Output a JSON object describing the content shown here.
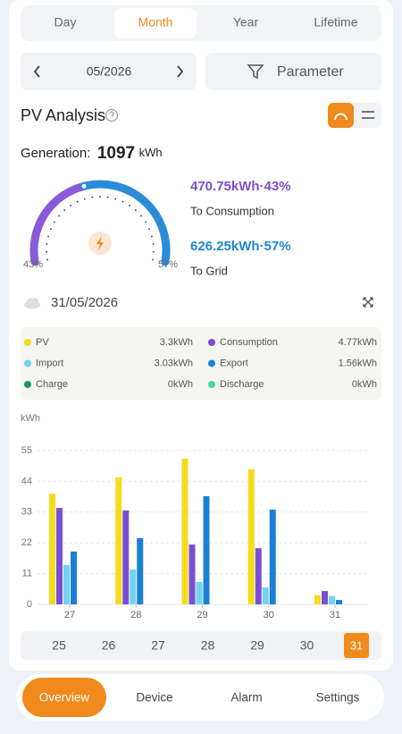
{
  "tabs": [
    "Day",
    "Month",
    "Year",
    "Lifetime"
  ],
  "period": "05/2026",
  "parameter": "Parameter",
  "section_title": "PV Analysis",
  "generation": {
    "label": "Generation:",
    "value": 1097,
    "unit": "kWh"
  },
  "gauge": {
    "values": [
      43,
      57
    ],
    "value_labels": [
      "43%",
      "57%"
    ],
    "colors": [
      "#8a5ad8",
      "#2a8bd8"
    ],
    "flows": [
      {
        "amount": "470.75kWh·43%",
        "caption": "To Consumption",
        "color": "#7b4fd0"
      },
      {
        "amount": "626.25kWh·57%",
        "caption": "To Grid",
        "color": "#1e86cf"
      }
    ]
  },
  "date": "31/05/2026",
  "extra_totals": [
    {
      "name": "Charge",
      "total": "0kWh",
      "color": "#1e9a5a"
    },
    {
      "name": "Discharge",
      "total": "0kWh",
      "color": "#3fd9a2"
    }
  ],
  "chart_data": {
    "type": "bar",
    "y_label": "kWh",
    "categories": [
      "27",
      "28",
      "29",
      "30",
      "31"
    ],
    "series": [
      {
        "name": "PV",
        "color": "#f4dc1c",
        "total": "3.3kWh",
        "values": [
          39.6,
          45.4,
          52.1,
          48.3,
          3.3
        ]
      },
      {
        "name": "Consumption",
        "color": "#7a4ed3",
        "total": "4.77kWh",
        "values": [
          34.5,
          33.6,
          21.4,
          20.1,
          4.77
        ]
      },
      {
        "name": "Import",
        "color": "#72d2f2",
        "total": "3.03kWh",
        "values": [
          14.1,
          12.5,
          8.0,
          6.1,
          3.03
        ]
      },
      {
        "name": "Export",
        "color": "#1a80d6",
        "total": "1.56kWh",
        "values": [
          18.9,
          23.7,
          38.7,
          33.9,
          1.56
        ]
      }
    ],
    "ylim": [
      0,
      55
    ],
    "yticks": [
      0,
      11,
      22,
      33,
      44,
      55
    ],
    "grid": true
  },
  "day_strip": [
    "25",
    "26",
    "27",
    "28",
    "29",
    "30",
    "31"
  ],
  "nav": [
    "Overview",
    "Device",
    "Alarm",
    "Settings"
  ]
}
